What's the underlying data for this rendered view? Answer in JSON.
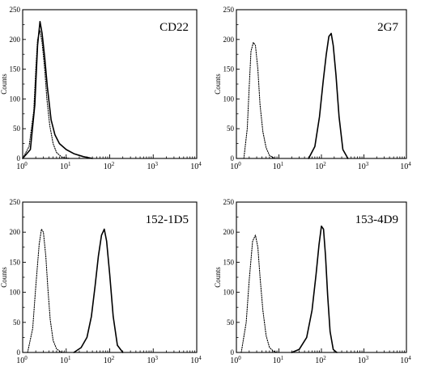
{
  "chart_data": [
    {
      "type": "line",
      "title": "CD22",
      "ylabel": "Counts",
      "xscale": "log",
      "xlim": [
        1,
        10000
      ],
      "ylim": [
        0,
        250
      ],
      "ytick_labels": [
        "0",
        "50",
        "100",
        "150",
        "200",
        "250"
      ],
      "xtick_labels": [
        {
          "base": "10",
          "exp": "0"
        },
        {
          "base": "10",
          "exp": "1"
        },
        {
          "base": "10",
          "exp": "2"
        },
        {
          "base": "10",
          "exp": "3"
        },
        {
          "base": "10",
          "exp": "4"
        }
      ],
      "series": [
        {
          "style": "dotted",
          "x": [
            1.0,
            1.4,
            1.8,
            2.0,
            2.2,
            2.5,
            2.8,
            3.2,
            3.6,
            4.2,
            5.0,
            6.0,
            8.0,
            12.0
          ],
          "y": [
            0,
            20,
            80,
            150,
            200,
            215,
            195,
            150,
            100,
            55,
            25,
            10,
            2,
            0
          ]
        },
        {
          "style": "solid",
          "x": [
            1.0,
            1.5,
            1.9,
            2.2,
            2.5,
            2.8,
            3.2,
            3.7,
            4.5,
            5.5,
            7.0,
            10.0,
            15.0,
            25.0,
            40.0
          ],
          "y": [
            0,
            15,
            90,
            190,
            230,
            210,
            170,
            120,
            65,
            40,
            25,
            15,
            8,
            3,
            0
          ]
        }
      ]
    },
    {
      "type": "line",
      "title": "2G7",
      "ylabel": "Counts",
      "xscale": "log",
      "xlim": [
        1,
        10000
      ],
      "ylim": [
        0,
        250
      ],
      "ytick_labels": [
        "0",
        "50",
        "100",
        "150",
        "200",
        "250"
      ],
      "xtick_labels": [
        {
          "base": "10",
          "exp": "0"
        },
        {
          "base": "10",
          "exp": "1"
        },
        {
          "base": "10",
          "exp": "2"
        },
        {
          "base": "10",
          "exp": "3"
        },
        {
          "base": "10",
          "exp": "4"
        }
      ],
      "series": [
        {
          "style": "dotted",
          "x": [
            1.5,
            1.8,
            2.0,
            2.2,
            2.5,
            2.8,
            3.2,
            3.6,
            4.2,
            5.0,
            6.0,
            8.0
          ],
          "y": [
            0,
            50,
            120,
            180,
            195,
            190,
            150,
            90,
            45,
            18,
            5,
            0
          ]
        },
        {
          "style": "solid",
          "x": [
            50,
            70,
            90,
            110,
            130,
            150,
            170,
            190,
            220,
            260,
            320,
            420
          ],
          "y": [
            0,
            20,
            70,
            130,
            175,
            205,
            210,
            190,
            140,
            70,
            15,
            0
          ]
        }
      ]
    },
    {
      "type": "line",
      "title": "152-1D5",
      "ylabel": "Counts",
      "xscale": "log",
      "xlim": [
        1,
        10000
      ],
      "ylim": [
        0,
        250
      ],
      "ytick_labels": [
        "0",
        "50",
        "100",
        "150",
        "200",
        "250"
      ],
      "xtick_labels": [
        {
          "base": "10",
          "exp": "0"
        },
        {
          "base": "10",
          "exp": "1"
        },
        {
          "base": "10",
          "exp": "2"
        },
        {
          "base": "10",
          "exp": "3"
        },
        {
          "base": "10",
          "exp": "4"
        }
      ],
      "series": [
        {
          "style": "dotted",
          "x": [
            1.3,
            1.7,
            2.0,
            2.4,
            2.7,
            3.0,
            3.4,
            3.8,
            4.3,
            5.0,
            6.0,
            7.5,
            9.0
          ],
          "y": [
            0,
            40,
            110,
            180,
            205,
            200,
            160,
            105,
            55,
            20,
            6,
            1,
            0
          ]
        },
        {
          "style": "solid",
          "x": [
            15,
            22,
            30,
            38,
            46,
            55,
            65,
            75,
            85,
            100,
            120,
            150,
            200
          ],
          "y": [
            0,
            8,
            25,
            60,
            110,
            160,
            195,
            205,
            185,
            130,
            60,
            12,
            0
          ]
        }
      ]
    },
    {
      "type": "line",
      "title": "153-4D9",
      "ylabel": "Counts",
      "xscale": "log",
      "xlim": [
        1,
        10000
      ],
      "ylim": [
        0,
        250
      ],
      "ytick_labels": [
        "0",
        "50",
        "100",
        "150",
        "200",
        "250"
      ],
      "xtick_labels": [
        {
          "base": "10",
          "exp": "0"
        },
        {
          "base": "10",
          "exp": "1"
        },
        {
          "base": "10",
          "exp": "2"
        },
        {
          "base": "10",
          "exp": "3"
        },
        {
          "base": "10",
          "exp": "4"
        }
      ],
      "series": [
        {
          "style": "dotted",
          "x": [
            1.3,
            1.7,
            2.0,
            2.4,
            2.8,
            3.2,
            3.6,
            4.2,
            5.0,
            6.0,
            7.5,
            9.0
          ],
          "y": [
            0,
            50,
            120,
            185,
            195,
            175,
            125,
            70,
            28,
            8,
            2,
            0
          ]
        },
        {
          "style": "solid",
          "x": [
            20,
            30,
            45,
            60,
            75,
            88,
            100,
            112,
            125,
            140,
            160,
            190,
            230
          ],
          "y": [
            0,
            5,
            25,
            70,
            130,
            180,
            210,
            205,
            160,
            95,
            35,
            5,
            0
          ]
        }
      ]
    }
  ]
}
